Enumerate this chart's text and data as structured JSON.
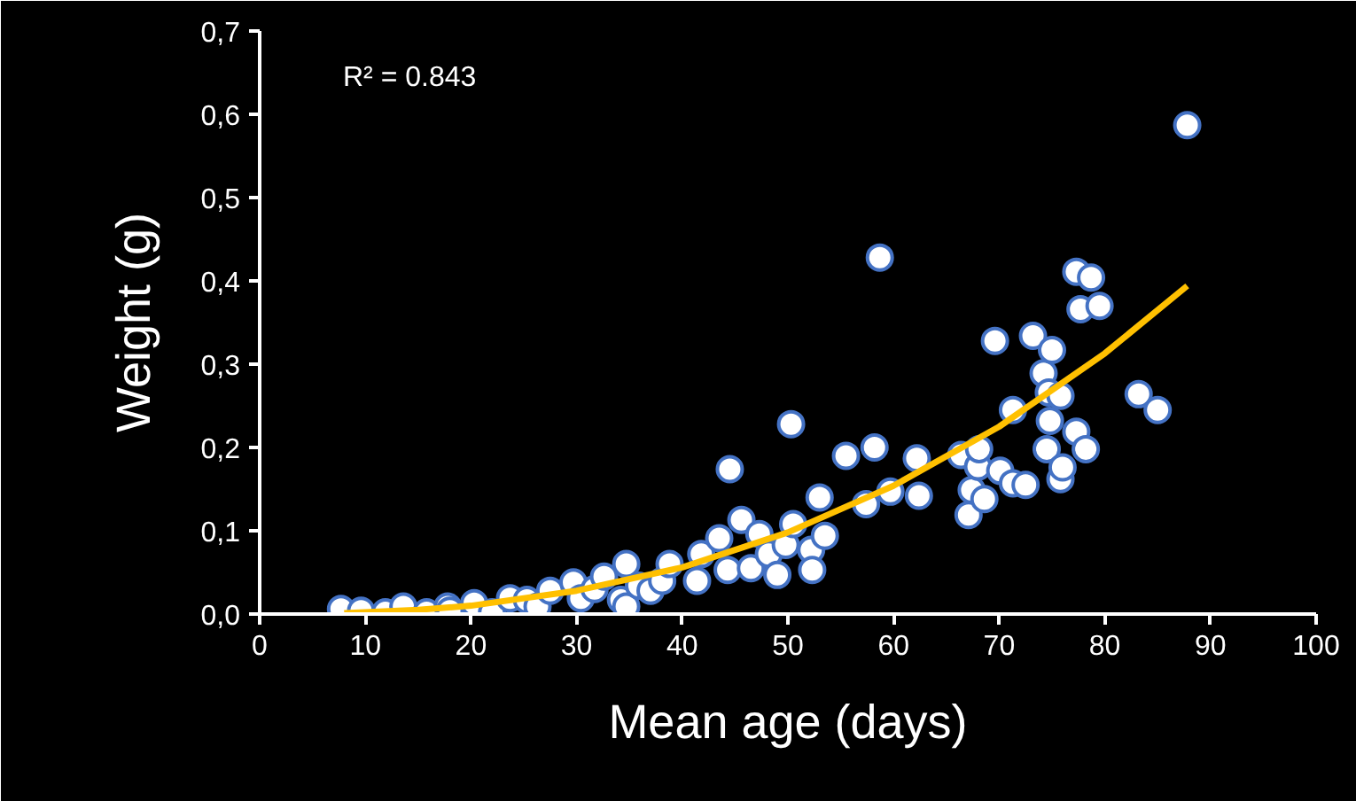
{
  "chart_data": {
    "type": "scatter",
    "xlabel": "Mean age (days)",
    "ylabel": "Weight (g)",
    "annotations": [
      "R² = 0.843"
    ],
    "xlim": [
      0,
      100
    ],
    "ylim": [
      0,
      0.7
    ],
    "xticks": [
      0,
      10,
      20,
      30,
      40,
      50,
      60,
      70,
      80,
      90,
      100
    ],
    "yticks": [
      {
        "value": 0,
        "label": "0,0"
      },
      {
        "value": 0.1,
        "label": "0,1"
      },
      {
        "value": 0.2,
        "label": "0,2"
      },
      {
        "value": 0.3,
        "label": "0,3"
      },
      {
        "value": 0.4,
        "label": "0,4"
      },
      {
        "value": 0.5,
        "label": "0,5"
      },
      {
        "value": 0.6,
        "label": "0,6"
      },
      {
        "value": 0.7,
        "label": "0,7"
      }
    ],
    "grid": false,
    "series": [
      {
        "color": "#4472c4",
        "marker": "circle",
        "x": [
          7.7,
          9.6,
          11.9,
          13.6,
          15.8,
          17.8,
          18,
          20.3,
          22,
          23.7,
          25.3,
          26.3,
          27.5,
          29.7,
          30.4,
          31.7,
          32.6,
          34.2,
          34.7,
          34.7,
          35.9,
          37,
          38.1,
          38.8,
          41.4,
          41.8,
          43.5,
          44.3,
          44.5,
          45.6,
          46.5,
          47.3,
          48.2,
          49,
          49.8,
          50.3,
          50.5,
          52.2,
          52.3,
          53,
          53.5,
          55.5,
          57.4,
          58.2,
          58.7,
          59.7,
          62.2,
          62.4,
          66.4,
          67.1,
          67.4,
          68,
          68.1,
          68.6,
          69.6,
          70.1,
          71.3,
          71.3,
          72.5,
          73.2,
          74.2,
          74.5,
          74.7,
          74.8,
          75,
          75.8,
          75.8,
          76,
          77.3,
          77.3,
          77.7,
          78.2,
          78.7,
          79.5,
          83.2,
          85,
          87.8
        ],
        "values": [
          0.006,
          0.004,
          0.002,
          0.009,
          0.002,
          0.009,
          0.004,
          0.013,
          0.002,
          0.019,
          0.017,
          0.009,
          0.028,
          0.038,
          0.019,
          0.03,
          0.045,
          0.017,
          0.06,
          0.009,
          0.034,
          0.028,
          0.04,
          0.06,
          0.04,
          0.072,
          0.091,
          0.053,
          0.174,
          0.113,
          0.055,
          0.096,
          0.072,
          0.047,
          0.083,
          0.228,
          0.108,
          0.077,
          0.053,
          0.14,
          0.094,
          0.19,
          0.132,
          0.2,
          0.428,
          0.147,
          0.187,
          0.142,
          0.191,
          0.119,
          0.149,
          0.177,
          0.198,
          0.138,
          0.328,
          0.172,
          0.245,
          0.157,
          0.155,
          0.334,
          0.289,
          0.198,
          0.266,
          0.232,
          0.317,
          0.262,
          0.162,
          0.176,
          0.411,
          0.219,
          0.366,
          0.198,
          0.404,
          0.37,
          0.264,
          0.245,
          0.587
        ]
      },
      {
        "type": "line",
        "color": "#ffc000",
        "marker": "none",
        "line_style": "solid",
        "x": [
          8,
          15,
          20,
          30,
          40,
          50,
          60,
          70,
          80,
          87.8
        ],
        "values": [
          0.001,
          0.005,
          0.01,
          0.028,
          0.056,
          0.098,
          0.154,
          0.225,
          0.313,
          0.394
        ]
      }
    ]
  }
}
